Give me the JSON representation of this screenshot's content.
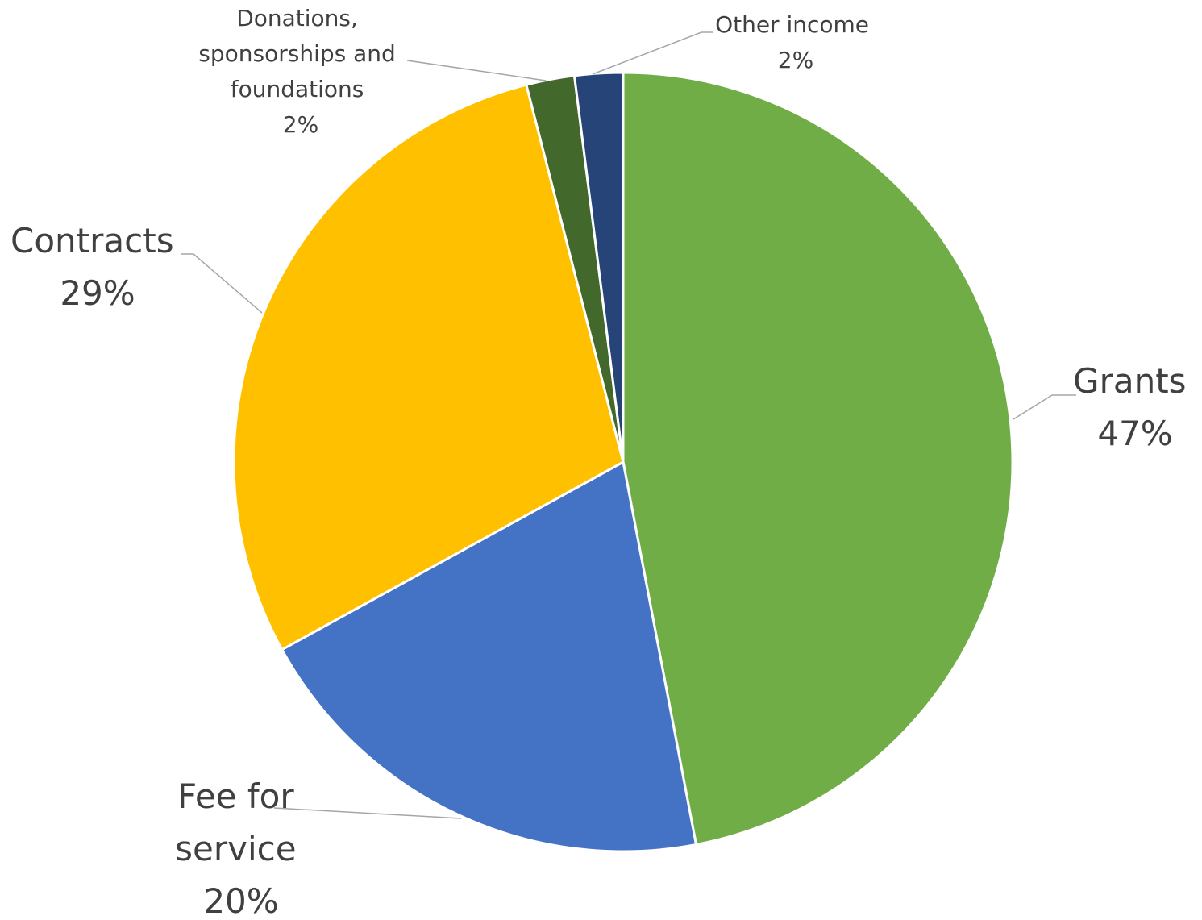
{
  "chart_data": {
    "type": "pie",
    "title": "",
    "start_angle_deg": 0,
    "direction": "clockwise",
    "slices": [
      {
        "name": "Grants",
        "value": 47,
        "label_pct": "47%",
        "color": "#70AD47"
      },
      {
        "name": "Fee for service",
        "value": 20,
        "label_pct": "20%",
        "color": "#4472C4"
      },
      {
        "name": "Contracts",
        "value": 29,
        "label_pct": "29%",
        "color": "#FFC000"
      },
      {
        "name": "Donations, sponsorships and foundations",
        "value": 2,
        "label_pct": "2%",
        "color": "#43682B"
      },
      {
        "name": "Other income",
        "value": 2,
        "label_pct": "2%",
        "color": "#264478"
      }
    ],
    "label_lines": {
      "grants": [
        "Grants",
        "47%"
      ],
      "fee": [
        "Fee for",
        "service",
        "20%"
      ],
      "contracts": [
        "Contracts",
        "29%"
      ],
      "donations": [
        "Donations,",
        "sponsorships and",
        "foundations",
        "2%"
      ],
      "other": [
        "Other income",
        "2%"
      ]
    },
    "legend": "none",
    "data_labels": "category name and percentage, outside with leader lines"
  }
}
